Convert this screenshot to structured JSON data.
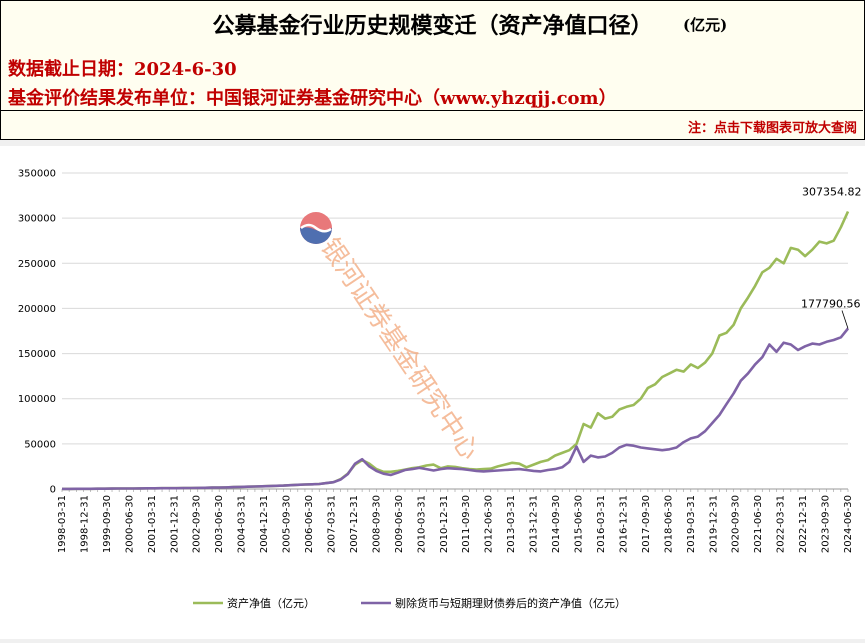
{
  "header": {
    "title": "公募基金行业历史规模变迁（资产净值口径）",
    "unit": "(亿元)",
    "date_line": "数据截止日期：2024-6-30",
    "publisher_line": "基金评价结果发布单位：中国银河证券基金研究中心（www.yhzqjj.com）",
    "note": "注：点击下载图表可放大查阅"
  },
  "watermark": {
    "text": "银河证券基金研究中心",
    "logo": "galaxy-securities-logo"
  },
  "colors": {
    "series1": "#9bbb59",
    "series2": "#7f63a6",
    "header_red": "#c00000"
  },
  "chart_data": {
    "type": "line",
    "ylim": [
      0,
      350000
    ],
    "yticks": [
      "0",
      "50000",
      "100000",
      "150000",
      "200000",
      "250000",
      "300000",
      "350000"
    ],
    "grid": true,
    "legend_position": "bottom",
    "x_tick_labels": [
      "1998-03-31",
      "1998-12-31",
      "1999-09-30",
      "2000-06-30",
      "2001-03-31",
      "2001-12-31",
      "2002-09-30",
      "2003-06-30",
      "2004-03-31",
      "2004-12-31",
      "2005-09-30",
      "2006-06-30",
      "2007-03-31",
      "2007-12-31",
      "2008-09-30",
      "2009-06-30",
      "2010-03-31",
      "2010-12-31",
      "2011-09-30",
      "2012-06-30",
      "2013-03-31",
      "2013-12-31",
      "2014-09-30",
      "2015-06-30",
      "2016-03-31",
      "2016-12-31",
      "2017-09-30",
      "2018-06-30",
      "2019-03-31",
      "2019-12-31",
      "2020-09-30",
      "2021-06-30",
      "2022-03-31",
      "2022-12-31",
      "2023-09-30",
      "2024-06-30"
    ],
    "series": [
      {
        "name": "资产净值（亿元）",
        "end_label": "307354.82",
        "values": [
          100,
          150,
          180,
          200,
          250,
          300,
          350,
          400,
          500,
          560,
          600,
          700,
          800,
          800,
          850,
          900,
          900,
          1000,
          1100,
          1200,
          1300,
          1500,
          1600,
          1800,
          2100,
          2300,
          2500,
          2800,
          3000,
          3200,
          3500,
          3800,
          4200,
          4700,
          5000,
          5200,
          5500,
          6500,
          7500,
          11000,
          17000,
          27000,
          32000,
          28000,
          22000,
          19000,
          19000,
          20000,
          21500,
          23000,
          24000,
          26000,
          27000,
          23000,
          25000,
          24500,
          23000,
          22000,
          21500,
          22000,
          22500,
          25000,
          27000,
          29000,
          28000,
          24000,
          27000,
          30000,
          32000,
          37000,
          40000,
          43000,
          50000,
          72000,
          68000,
          84000,
          78000,
          80000,
          88000,
          91000,
          93000,
          100000,
          112000,
          116000,
          124000,
          128000,
          132000,
          130000,
          138000,
          134000,
          140000,
          150000,
          170000,
          173000,
          182000,
          200000,
          212000,
          225000,
          240000,
          245000,
          255000,
          250000,
          267000,
          265000,
          258000,
          265000,
          274000,
          272000,
          275000,
          290000,
          307354.82
        ]
      },
      {
        "name": "剔除货币与短期理财债券后的资产净值（亿元）",
        "end_label": "177790.56",
        "values": [
          100,
          150,
          180,
          200,
          250,
          300,
          350,
          400,
          500,
          560,
          600,
          700,
          800,
          800,
          850,
          900,
          900,
          1000,
          1100,
          1200,
          1300,
          1500,
          1600,
          1800,
          2100,
          2300,
          2500,
          2800,
          3000,
          3200,
          3500,
          3800,
          4200,
          4700,
          5000,
          5200,
          5500,
          6500,
          7500,
          10500,
          16500,
          28000,
          33000,
          25000,
          20000,
          17000,
          15500,
          18000,
          21000,
          22000,
          23500,
          22000,
          20500,
          22000,
          23000,
          22500,
          22000,
          21000,
          20000,
          19500,
          20000,
          20500,
          21000,
          21500,
          22000,
          21000,
          20000,
          19500,
          21000,
          22000,
          24000,
          30000,
          47000,
          30000,
          37000,
          35000,
          36000,
          40000,
          46000,
          49000,
          48000,
          46000,
          45000,
          44000,
          43000,
          44000,
          46000,
          52000,
          56000,
          58000,
          64000,
          73000,
          82000,
          94000,
          106000,
          120000,
          128000,
          138000,
          146000,
          160000,
          152000,
          162000,
          160000,
          154000,
          158000,
          161000,
          160000,
          163000,
          165000,
          168000,
          177790.56
        ]
      }
    ]
  }
}
